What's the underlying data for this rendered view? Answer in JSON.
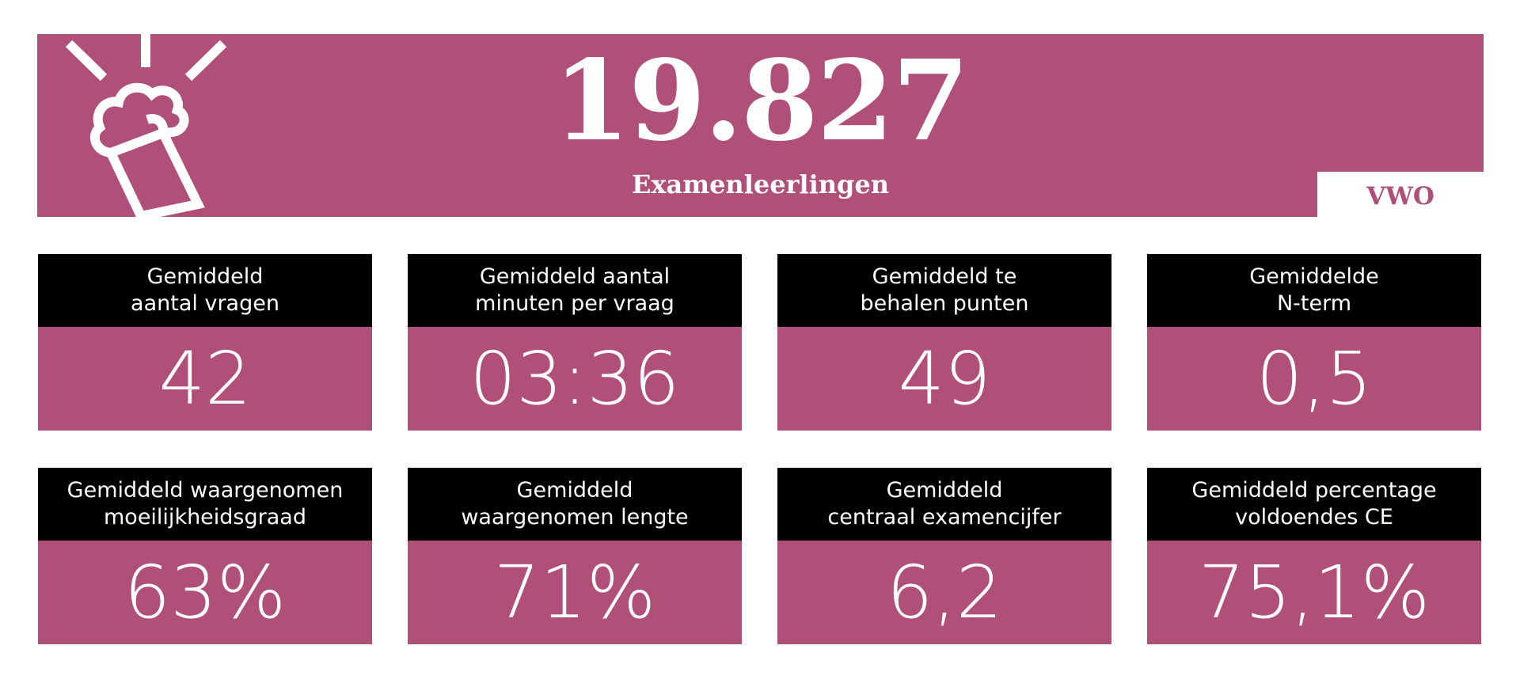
{
  "banner": {
    "number": "19.827",
    "subtitle": "Examenleerlingen",
    "level": "VWO",
    "color": "#b04f78",
    "icon": "beer-glass-icon"
  },
  "cards": [
    {
      "label": "Gemiddeld\naantal vragen",
      "value": "42"
    },
    {
      "label": "Gemiddeld aantal\nminuten per vraag",
      "value": "03:36"
    },
    {
      "label": "Gemiddeld te\nbehalen punten",
      "value": "49"
    },
    {
      "label": "Gemiddelde\nN-term",
      "value": "0,5"
    },
    {
      "label": "Gemiddeld waargenomen\nmoeilijkheidsgraad",
      "value": "63%"
    },
    {
      "label": "Gemiddeld\nwaargenomen lengte",
      "value": "71%"
    },
    {
      "label": "Gemiddeld\ncentraal examencijfer",
      "value": "6,2"
    },
    {
      "label": "Gemiddeld percentage\nvoldoendes CE",
      "value": "75,1%"
    }
  ]
}
